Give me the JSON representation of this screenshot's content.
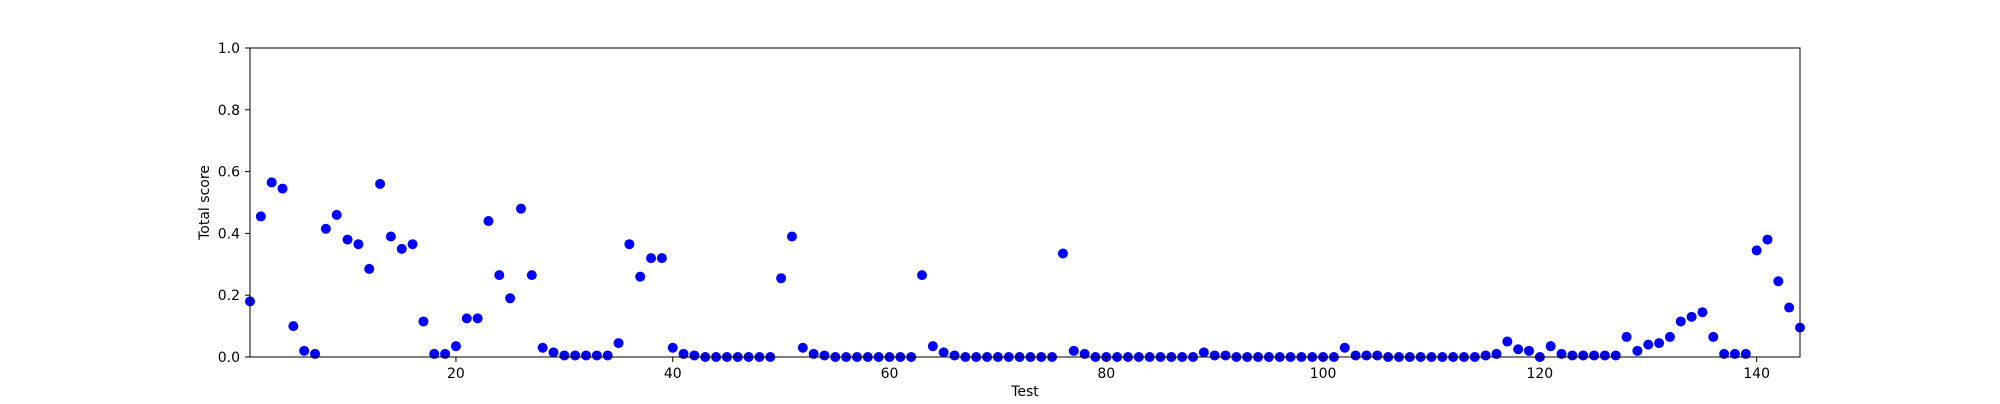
{
  "chart_data": {
    "type": "scatter",
    "title": "",
    "xlabel": "Test",
    "ylabel": "Total score",
    "xlim": [
      1,
      144
    ],
    "ylim": [
      0.0,
      1.0
    ],
    "xticks": [
      20,
      40,
      60,
      80,
      100,
      120,
      140
    ],
    "yticks": [
      "0.0",
      "0.2",
      "0.4",
      "0.6",
      "0.8",
      "1.0"
    ],
    "grid": false,
    "legend": "none",
    "marker_color": "#0000ff",
    "series": [
      {
        "x": [
          1,
          2,
          3,
          4,
          5,
          6,
          7,
          8,
          9,
          10,
          11,
          12,
          13,
          14,
          15,
          16,
          17,
          18,
          19,
          20,
          21,
          22,
          23,
          24,
          25,
          26,
          27,
          28,
          29,
          30,
          31,
          32,
          33,
          34,
          35,
          36,
          37,
          38,
          39,
          40,
          41,
          42,
          43,
          44,
          45,
          46,
          47,
          48,
          49,
          50,
          51,
          52,
          53,
          54,
          55,
          56,
          57,
          58,
          59,
          60,
          61,
          62,
          63,
          64,
          65,
          66,
          67,
          68,
          69,
          70,
          71,
          72,
          73,
          74,
          75,
          76,
          77,
          78,
          79,
          80,
          81,
          82,
          83,
          84,
          85,
          86,
          87,
          88,
          89,
          90,
          91,
          92,
          93,
          94,
          95,
          96,
          97,
          98,
          99,
          100,
          101,
          102,
          103,
          104,
          105,
          106,
          107,
          108,
          109,
          110,
          111,
          112,
          113,
          114,
          115,
          116,
          117,
          118,
          119,
          120,
          121,
          122,
          123,
          124,
          125,
          126,
          127,
          128,
          129,
          130,
          131,
          132,
          133,
          134,
          135,
          136,
          137,
          138,
          139,
          140,
          141,
          142,
          143,
          144
        ],
        "y": [
          0.18,
          0.455,
          0.565,
          0.545,
          0.1,
          0.02,
          0.01,
          0.415,
          0.46,
          0.38,
          0.365,
          0.285,
          0.56,
          0.39,
          0.35,
          0.365,
          0.115,
          0.01,
          0.01,
          0.035,
          0.125,
          0.125,
          0.44,
          0.265,
          0.19,
          0.48,
          0.265,
          0.03,
          0.015,
          0.005,
          0.005,
          0.005,
          0.005,
          0.005,
          0.045,
          0.365,
          0.26,
          0.32,
          0.32,
          0.03,
          0.01,
          0.005,
          0.0,
          0.0,
          0.0,
          0.0,
          0.0,
          0.0,
          0.0,
          0.255,
          0.39,
          0.03,
          0.01,
          0.005,
          0.0,
          0.0,
          0.0,
          0.0,
          0.0,
          0.0,
          0.0,
          0.0,
          0.265,
          0.035,
          0.015,
          0.005,
          0.0,
          0.0,
          0.0,
          0.0,
          0.0,
          0.0,
          0.0,
          0.0,
          0.0,
          0.335,
          0.02,
          0.01,
          0.0,
          0.0,
          0.0,
          0.0,
          0.0,
          0.0,
          0.0,
          0.0,
          0.0,
          0.0,
          0.015,
          0.005,
          0.005,
          0.0,
          0.0,
          0.0,
          0.0,
          0.0,
          0.0,
          0.0,
          0.0,
          0.0,
          0.0,
          0.03,
          0.005,
          0.005,
          0.005,
          0.0,
          0.0,
          0.0,
          0.0,
          0.0,
          0.0,
          0.0,
          0.0,
          0.0,
          0.005,
          0.01,
          0.05,
          0.025,
          0.02,
          0.0,
          0.035,
          0.01,
          0.005,
          0.005,
          0.005,
          0.005,
          0.005,
          0.065,
          0.02,
          0.04,
          0.045,
          0.065,
          0.115,
          0.13,
          0.145,
          0.065,
          0.01,
          0.01,
          0.01,
          0.345,
          0.38,
          0.245,
          0.16,
          0.095
        ]
      }
    ]
  }
}
